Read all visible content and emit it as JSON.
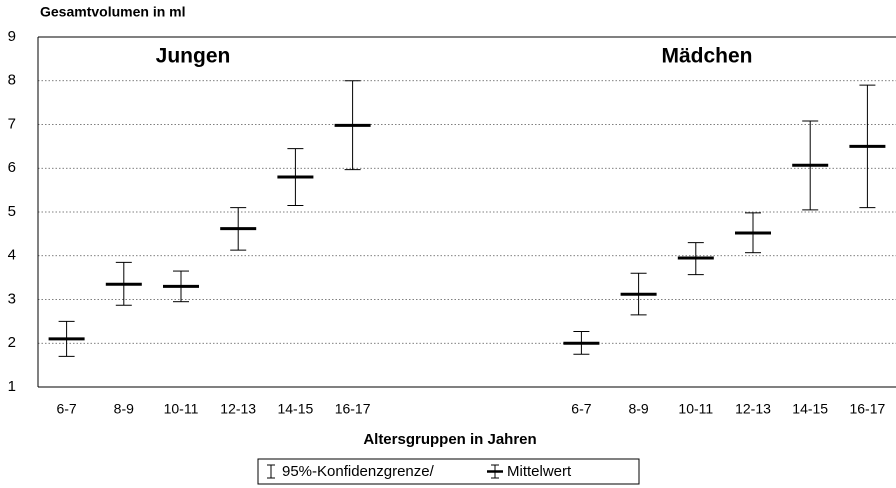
{
  "chart_data": {
    "type": "errorbar",
    "y_label": "Gesamtvolumen in ml",
    "x_label": "Altersgruppen in Jahren",
    "annotations": [
      "Jungen",
      "Mädchen"
    ],
    "categories": [
      "6-7",
      "8-9",
      "10-11",
      "12-13",
      "14-15",
      "16-17",
      null,
      null,
      null,
      "6-7",
      "8-9",
      "10-11",
      "12-13",
      "14-15",
      "16-17"
    ],
    "series": [
      {
        "name": "Mittelwert",
        "color": "#000000",
        "values": [
          2.1,
          3.35,
          3.3,
          4.62,
          5.8,
          6.98,
          null,
          null,
          null,
          2.0,
          3.12,
          3.95,
          4.52,
          6.07,
          6.5
        ],
        "lower": [
          1.7,
          2.87,
          2.95,
          4.13,
          5.15,
          5.97,
          null,
          null,
          null,
          1.75,
          2.65,
          3.57,
          4.07,
          5.05,
          5.1
        ],
        "upper": [
          2.5,
          3.85,
          3.65,
          5.1,
          6.45,
          8.0,
          null,
          null,
          null,
          2.27,
          3.6,
          4.3,
          4.98,
          7.08,
          7.9
        ]
      }
    ],
    "ci_label": "95%-Konfidenzgrenze/",
    "ylim": [
      1,
      9
    ],
    "yticks": [
      1,
      2,
      3,
      4,
      5,
      6,
      7,
      8,
      9
    ],
    "grid": true
  }
}
